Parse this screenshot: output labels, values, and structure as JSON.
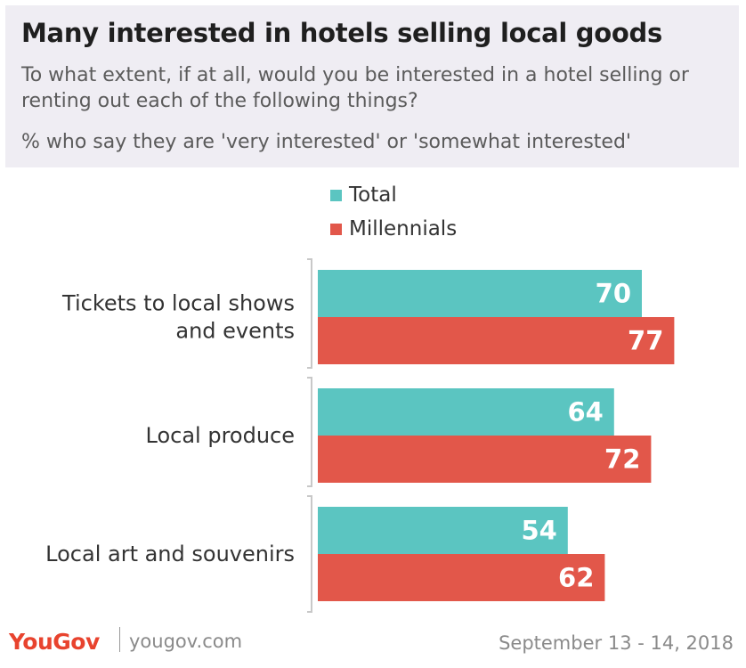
{
  "header": {
    "title": "Many interested in hotels selling local goods",
    "subtitle": "To what extent, if at all, would you be interested in a hotel selling or renting out each of the following things?",
    "note": "% who say they are 'very interested' or 'somewhat interested'"
  },
  "colors": {
    "total": "#5bc5c1",
    "millennials": "#e2574a",
    "header_bg": "#efedf3"
  },
  "chart_data": {
    "type": "bar",
    "orientation": "horizontal",
    "categories": [
      [
        "Tickets to local shows",
        "and events"
      ],
      [
        "Local produce"
      ],
      [
        "Local art and souvenirs"
      ]
    ],
    "series": [
      {
        "name": "Total",
        "values": [
          70,
          64,
          54
        ]
      },
      {
        "name": "Millennials",
        "values": [
          77,
          72,
          62
        ]
      }
    ],
    "xlim": [
      0,
      100
    ],
    "legend_position": "top",
    "data_labels": true
  },
  "footer": {
    "brand": "YouGov",
    "url": "yougov.com",
    "date": "September 13 - 14, 2018"
  }
}
